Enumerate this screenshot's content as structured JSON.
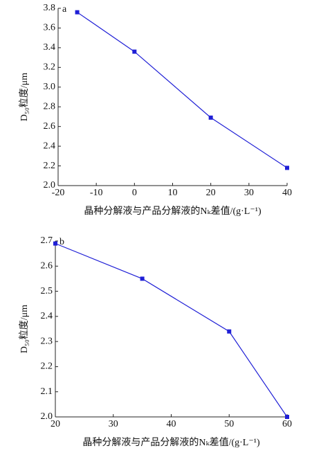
{
  "chart_data": [
    {
      "type": "line",
      "annotation": "a",
      "y_label": "D₅₀粒度/μm",
      "x_label": "晶种分解液与产品分解液的Nₖ差值/(g·L⁻¹)",
      "x": [
        -15,
        0,
        20,
        40
      ],
      "values": [
        3.76,
        3.36,
        2.69,
        2.18
      ],
      "color": "#1f1fd6",
      "xlim": [
        -20,
        40
      ],
      "xticks": [
        -20,
        -10,
        0,
        10,
        20,
        30,
        40
      ],
      "ylim": [
        2.0,
        3.8
      ],
      "yticks": [
        {
          "value": 2,
          "label": "2.0"
        },
        2.2,
        2.4,
        2.6,
        2.8,
        {
          "value": 3,
          "label": "3.0"
        },
        3.2,
        3.4,
        3.6,
        3.8
      ]
    },
    {
      "type": "line",
      "annotation": "b",
      "y_label": "D₅₀粒度/μm",
      "x_label": "晶种分解液与产品分解液的Nₖ差值/(g·L⁻¹)",
      "x": [
        20,
        35,
        50,
        60
      ],
      "values": [
        2.69,
        2.55,
        2.34,
        2.0
      ],
      "color": "#1f1fd6",
      "xlim": [
        20,
        60
      ],
      "xticks": [
        20,
        30,
        40,
        50,
        60
      ],
      "ylim": [
        2.0,
        2.7
      ],
      "yticks": [
        {
          "value": 2,
          "label": "2.0"
        },
        2.1,
        2.2,
        2.3,
        2.4,
        2.5,
        2.6,
        2.7
      ]
    }
  ]
}
